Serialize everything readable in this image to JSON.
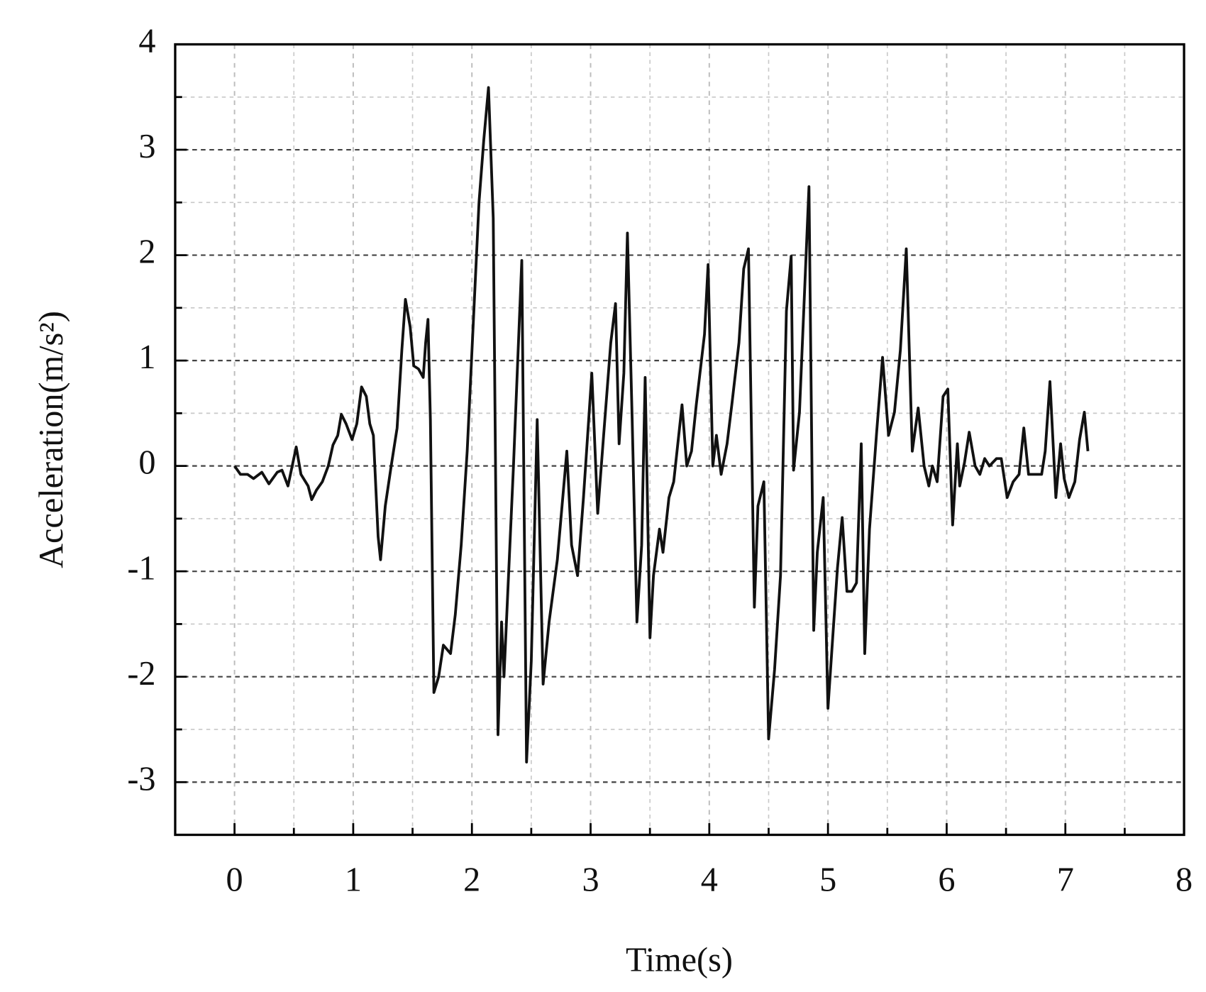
{
  "chart_data": {
    "type": "line",
    "x_label": "Time(s)",
    "y_label": "Acceleration(m/s²)",
    "xlim": [
      -0.5,
      8
    ],
    "ylim": [
      -3.5,
      4
    ],
    "xticks": [
      0,
      1,
      2,
      3,
      4,
      5,
      6,
      7,
      8
    ],
    "yticks": [
      -3,
      -2,
      -1,
      0,
      1,
      2,
      3,
      4
    ],
    "xticks_minor": [
      0.5,
      1.5,
      2.5,
      3.5,
      4.5,
      5.5,
      6.5,
      7.5
    ],
    "yticks_minor": [
      -2.5,
      -1.5,
      -0.5,
      0.5,
      1.5,
      2.5,
      3.5
    ],
    "grid": true,
    "x": [
      0,
      0.05,
      0.11,
      0.16,
      0.23,
      0.29,
      0.36,
      0.4,
      0.45,
      0.52,
      0.56,
      0.62,
      0.65,
      0.69,
      0.74,
      0.79,
      0.83,
      0.87,
      0.9,
      0.94,
      0.99,
      1.03,
      1.07,
      1.11,
      1.14,
      1.17,
      1.21,
      1.23,
      1.27,
      1.32,
      1.37,
      1.41,
      1.44,
      1.48,
      1.51,
      1.55,
      1.59,
      1.61,
      1.63,
      1.65,
      1.68,
      1.72,
      1.76,
      1.82,
      1.86,
      1.91,
      1.96,
      2.01,
      2.06,
      2.1,
      2.14,
      2.18,
      2.22,
      2.25,
      2.27,
      2.35,
      2.42,
      2.46,
      2.5,
      2.55,
      2.6,
      2.65,
      2.72,
      2.8,
      2.84,
      2.89,
      2.94,
      3.01,
      3.06,
      3.11,
      3.17,
      3.21,
      3.24,
      3.28,
      3.31,
      3.35,
      3.39,
      3.43,
      3.46,
      3.5,
      3.53,
      3.58,
      3.61,
      3.66,
      3.7,
      3.77,
      3.81,
      3.85,
      3.89,
      3.96,
      3.99,
      4.03,
      4.06,
      4.1,
      4.15,
      4.19,
      4.25,
      4.29,
      4.33,
      4.38,
      4.41,
      4.46,
      4.5,
      4.55,
      4.6,
      4.65,
      4.69,
      4.71,
      4.76,
      4.84,
      4.88,
      4.91,
      4.96,
      5.0,
      5.04,
      5.08,
      5.12,
      5.16,
      5.2,
      5.24,
      5.28,
      5.31,
      5.35,
      5.41,
      5.46,
      5.51,
      5.56,
      5.61,
      5.66,
      5.71,
      5.76,
      5.81,
      5.85,
      5.88,
      5.92,
      5.97,
      6.01,
      6.05,
      6.09,
      6.11,
      6.15,
      6.19,
      6.24,
      6.28,
      6.32,
      6.36,
      6.42,
      6.46,
      6.51,
      6.56,
      6.61,
      6.65,
      6.69,
      6.74,
      6.8,
      6.83,
      6.87,
      6.92,
      6.96,
      6.99,
      7.03,
      7.08,
      7.12,
      7.16,
      7.19
    ],
    "series": [
      {
        "name": "Acceleration",
        "color": "#111111",
        "values": [
          0,
          -0.08,
          -0.08,
          -0.12,
          -0.06,
          -0.17,
          -0.06,
          -0.04,
          -0.19,
          0.18,
          -0.08,
          -0.19,
          -0.32,
          -0.23,
          -0.15,
          0,
          0.2,
          0.29,
          0.49,
          0.4,
          0.25,
          0.4,
          0.75,
          0.66,
          0.4,
          0.29,
          -0.67,
          -0.89,
          -0.38,
          0,
          0.36,
          1.1,
          1.58,
          1.32,
          0.95,
          0.92,
          0.84,
          1.17,
          1.39,
          0.44,
          -2.15,
          -2.0,
          -1.7,
          -1.78,
          -1.41,
          -0.75,
          0.14,
          1.32,
          2.5,
          3.09,
          3.59,
          2.35,
          -2.55,
          -1.48,
          -2.0,
          0,
          1.95,
          -2.81,
          -1.85,
          0.44,
          -2.07,
          -1.48,
          -0.89,
          0.14,
          -0.75,
          -1.04,
          -0.3,
          0.88,
          -0.45,
          0.29,
          1.17,
          1.54,
          0.21,
          0.88,
          2.21,
          0.44,
          -1.48,
          -0.75,
          0.84,
          -1.63,
          -1.04,
          -0.6,
          -0.82,
          -0.3,
          -0.15,
          0.58,
          0,
          0.14,
          0.58,
          1.25,
          1.91,
          0,
          0.29,
          -0.08,
          0.21,
          0.58,
          1.17,
          1.87,
          2.06,
          -1.34,
          -0.38,
          -0.15,
          -2.59,
          -1.93,
          -1.04,
          1.47,
          1.99,
          -0.04,
          0.51,
          2.65,
          -1.56,
          -0.82,
          -0.3,
          -2.3,
          -1.63,
          -0.97,
          -0.49,
          -1.19,
          -1.19,
          -1.11,
          0.21,
          -1.78,
          -0.6,
          0.32,
          1.03,
          0.29,
          0.51,
          1.1,
          2.06,
          0.14,
          0.55,
          0,
          -0.19,
          0,
          -0.15,
          0.66,
          0.73,
          -0.56,
          0.21,
          -0.19,
          0.03,
          0.32,
          0,
          -0.08,
          0.07,
          0,
          0.07,
          0.07,
          -0.3,
          -0.15,
          -0.08,
          0.36,
          -0.08,
          -0.08,
          -0.08,
          0.14,
          0.8,
          -0.3,
          0.21,
          -0.12,
          -0.3,
          -0.15,
          0.25,
          0.51,
          0.14
        ]
      }
    ]
  }
}
